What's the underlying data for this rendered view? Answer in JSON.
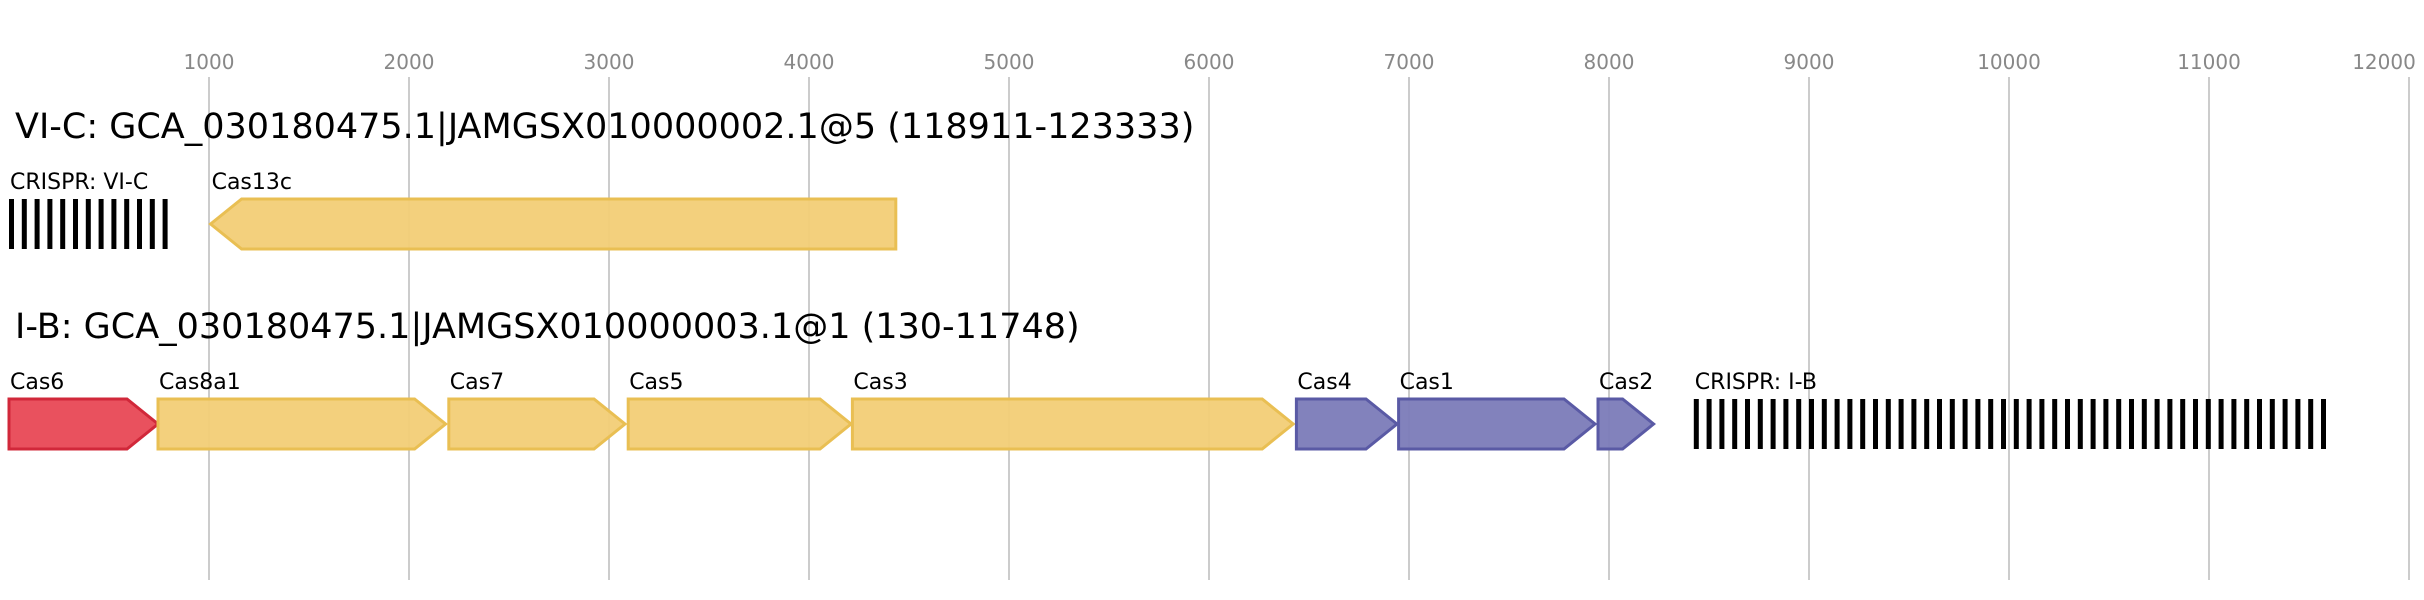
{
  "axis": {
    "xlim": [
      0,
      12000
    ],
    "xticks": [
      1000,
      2000,
      3000,
      4000,
      5000,
      6000,
      7000,
      8000,
      9000,
      10000,
      11000,
      12000
    ]
  },
  "tracks": [
    {
      "title": "VI-C: GCA_030180475.1|JAMGSX010000002.1@5 (118911-123333)",
      "features": [
        {
          "kind": "crispr",
          "label": "CRISPR: VI-C",
          "start": 0,
          "end": 830
        },
        {
          "kind": "gene",
          "label": "Cas13c",
          "start": 1008,
          "end": 4434,
          "strand": "-",
          "color": "#f2cd76",
          "stroke": "#e9bf53"
        }
      ]
    },
    {
      "title": "I-B: GCA_030180475.1|JAMGSX010000003.1@1 (130-11748)",
      "features": [
        {
          "kind": "gene",
          "label": "Cas6",
          "start": 0,
          "end": 745,
          "strand": "+",
          "color": "#e84855",
          "stroke": "#d1283a"
        },
        {
          "kind": "gene",
          "label": "Cas8a1",
          "start": 745,
          "end": 2183,
          "strand": "+",
          "color": "#f2cd76",
          "stroke": "#e9bf53"
        },
        {
          "kind": "gene",
          "label": "Cas7",
          "start": 2199,
          "end": 3080,
          "strand": "+",
          "color": "#f2cd76",
          "stroke": "#e9bf53"
        },
        {
          "kind": "gene",
          "label": "Cas5",
          "start": 3096,
          "end": 4210,
          "strand": "+",
          "color": "#f2cd76",
          "stroke": "#e9bf53"
        },
        {
          "kind": "gene",
          "label": "Cas3",
          "start": 4217,
          "end": 6421,
          "strand": "+",
          "color": "#f2cd76",
          "stroke": "#e9bf53"
        },
        {
          "kind": "gene",
          "label": "Cas4",
          "start": 6437,
          "end": 6940,
          "strand": "+",
          "color": "#7b7bb8",
          "stroke": "#5a5aa5"
        },
        {
          "kind": "gene",
          "label": "Cas1",
          "start": 6948,
          "end": 7930,
          "strand": "+",
          "color": "#7b7bb8",
          "stroke": "#5a5aa5"
        },
        {
          "kind": "gene",
          "label": "Cas2",
          "start": 7945,
          "end": 8223,
          "strand": "+",
          "color": "#7b7bb8",
          "stroke": "#5a5aa5"
        },
        {
          "kind": "crispr",
          "label": "CRISPR: I-B",
          "start": 8424,
          "end": 11634
        }
      ]
    }
  ]
}
